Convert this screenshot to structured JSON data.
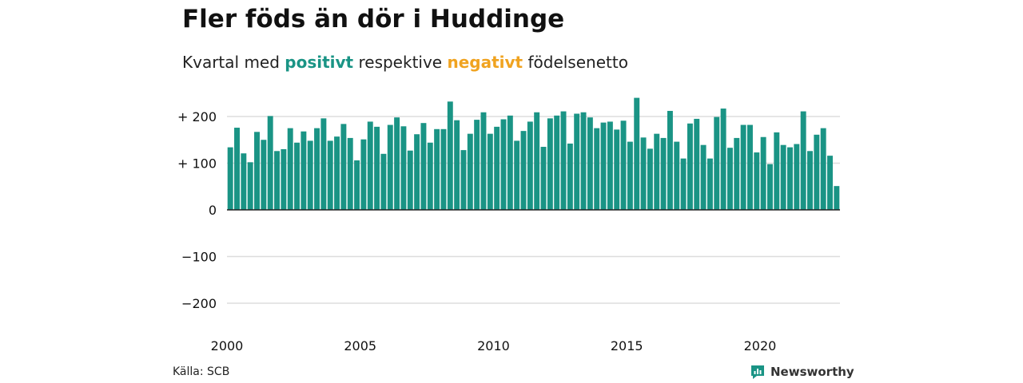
{
  "title": "Fler föds än dör i Huddinge",
  "subtitle": {
    "prefix": "Kvartal med ",
    "positive_word": "positivt",
    "middle": " respektive ",
    "negative_word": "negativt",
    "suffix": " födelsenetto"
  },
  "colors": {
    "positive": "#1a9485",
    "negative": "#f0a320",
    "grid": "#dddddd",
    "baseline": "#222222",
    "text": "#111111"
  },
  "source": "Källa: SCB",
  "brand": {
    "name": "Newsworthy",
    "icon": "newsworthy-logo-icon"
  },
  "chart_data": {
    "type": "bar",
    "start_year": 2000,
    "frequency": "quarterly",
    "x_tick_labels": [
      "2000",
      "2005",
      "2010",
      "2015",
      "2020"
    ],
    "y_ticks": [
      200,
      100,
      0,
      -100,
      -200
    ],
    "y_tick_labels": [
      "+ 200",
      "+ 100",
      "0",
      "−100",
      "−200"
    ],
    "ylim": [
      -200,
      240
    ],
    "values": [
      134,
      176,
      121,
      102,
      167,
      150,
      201,
      126,
      130,
      175,
      144,
      168,
      148,
      175,
      196,
      148,
      157,
      184,
      154,
      106,
      151,
      189,
      178,
      120,
      182,
      198,
      179,
      127,
      162,
      186,
      144,
      173,
      173,
      232,
      192,
      128,
      163,
      193,
      209,
      163,
      178,
      194,
      202,
      148,
      169,
      189,
      209,
      135,
      196,
      202,
      211,
      142,
      206,
      209,
      198,
      175,
      187,
      189,
      172,
      191,
      146,
      240,
      155,
      131,
      163,
      154,
      212,
      146,
      110,
      185,
      195,
      139,
      110,
      199,
      217,
      133,
      154,
      182,
      182,
      123,
      156,
      98,
      166,
      139,
      134,
      141,
      211,
      126,
      161,
      175,
      116,
      51
    ]
  }
}
